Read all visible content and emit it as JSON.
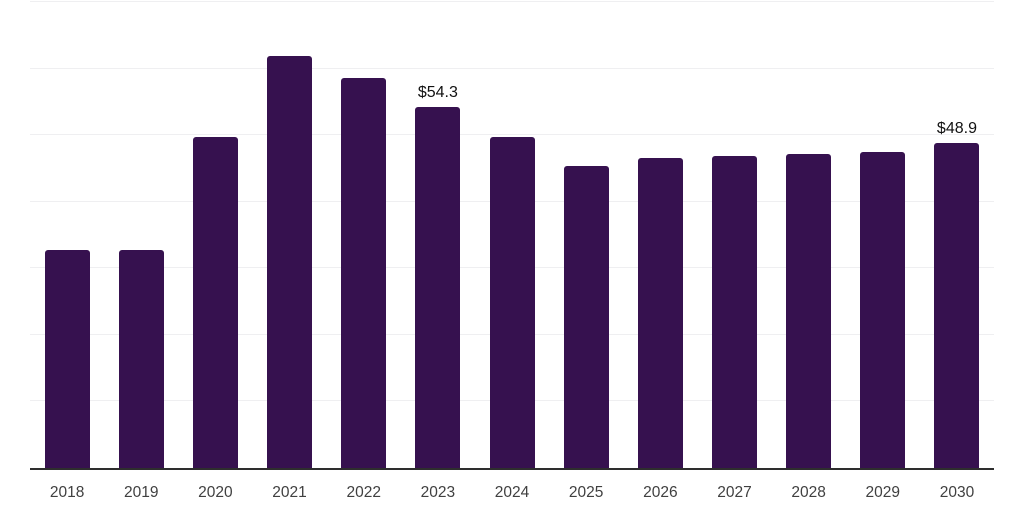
{
  "chart_data": {
    "type": "bar",
    "categories": [
      "2018",
      "2019",
      "2020",
      "2021",
      "2022",
      "2023",
      "2024",
      "2025",
      "2026",
      "2027",
      "2028",
      "2029",
      "2030"
    ],
    "values": [
      32.9,
      32.9,
      49.8,
      62.0,
      58.7,
      54.3,
      49.8,
      45.5,
      46.6,
      46.9,
      47.3,
      47.6,
      48.9
    ],
    "data_labels": {
      "2023": "$54.3",
      "2030": "$48.9"
    },
    "ylim": [
      0,
      70
    ],
    "gridline_step": 10,
    "grid": true,
    "legend": "none",
    "y_tick_labels_visible": false,
    "colors": {
      "bar": "#36114f",
      "axis_line": "#2e2e2e",
      "gridline": "#efeff1",
      "data_label": "#111111",
      "x_tick_label": "#404040",
      "background": "#ffffff"
    }
  }
}
